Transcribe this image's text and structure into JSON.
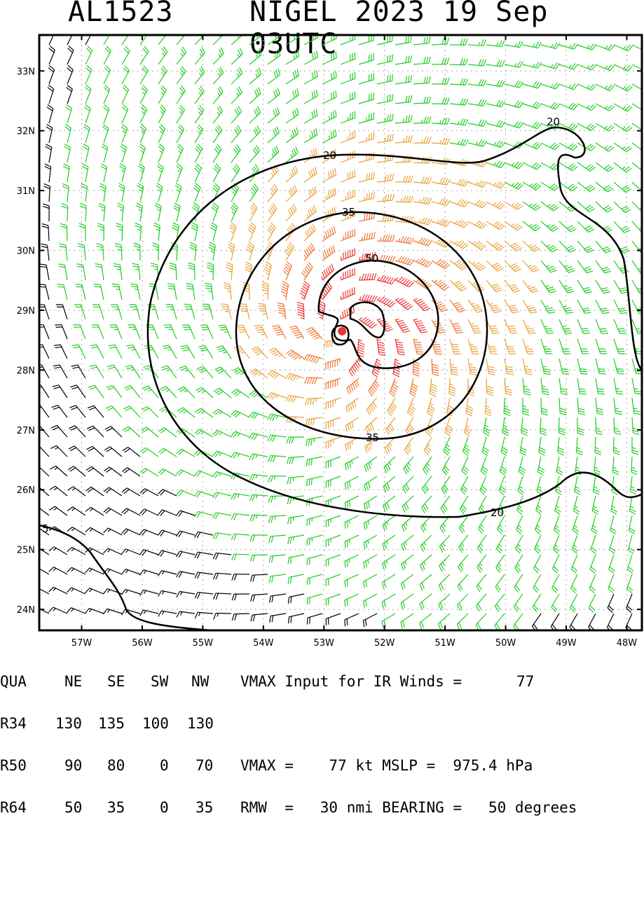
{
  "title": {
    "storm_id": "AL1523",
    "storm_time": "NIGEL 2023 19 Sep 03UTC"
  },
  "map": {
    "lon_min": -57.7,
    "lon_max": -47.75,
    "lat_min": 23.65,
    "lat_max": 33.6,
    "lon_ticks": [
      "57W",
      "56W",
      "55W",
      "54W",
      "53W",
      "52W",
      "51W",
      "50W",
      "49W",
      "48W"
    ],
    "lat_ticks": [
      "24N",
      "25N",
      "26N",
      "27N",
      "28N",
      "29N",
      "30N",
      "31N",
      "32N",
      "33N"
    ],
    "center": {
      "lon": -52.7,
      "lat": 28.65
    },
    "contour_labels": [
      "20",
      "20",
      "35",
      "35",
      "50",
      "20",
      "5"
    ],
    "wind_colors": {
      "lt20": "#000000",
      "20_35": "#22cc22",
      "35_50": "#e8a33a",
      "50_64": "#ee7733",
      "ge64": "#ee3333"
    },
    "center_color": "#ee3333"
  },
  "info": {
    "header": [
      "QUA",
      "NE",
      "SE",
      "SW",
      "NW"
    ],
    "r34": [
      "R34",
      "130",
      "135",
      "100",
      "130"
    ],
    "r50": [
      "R50",
      "90",
      "80",
      "0",
      "70"
    ],
    "r64": [
      "R64",
      "50",
      "35",
      "0",
      "35"
    ],
    "vmax_input_label": "VMAX Input for IR Winds =",
    "vmax_input_value": "77",
    "vmax_line": "VMAX =    77 kt MSLP =  975.4 hPa",
    "rmw_line": "RMW  =   30 nmi BEARING =   50 degrees"
  }
}
